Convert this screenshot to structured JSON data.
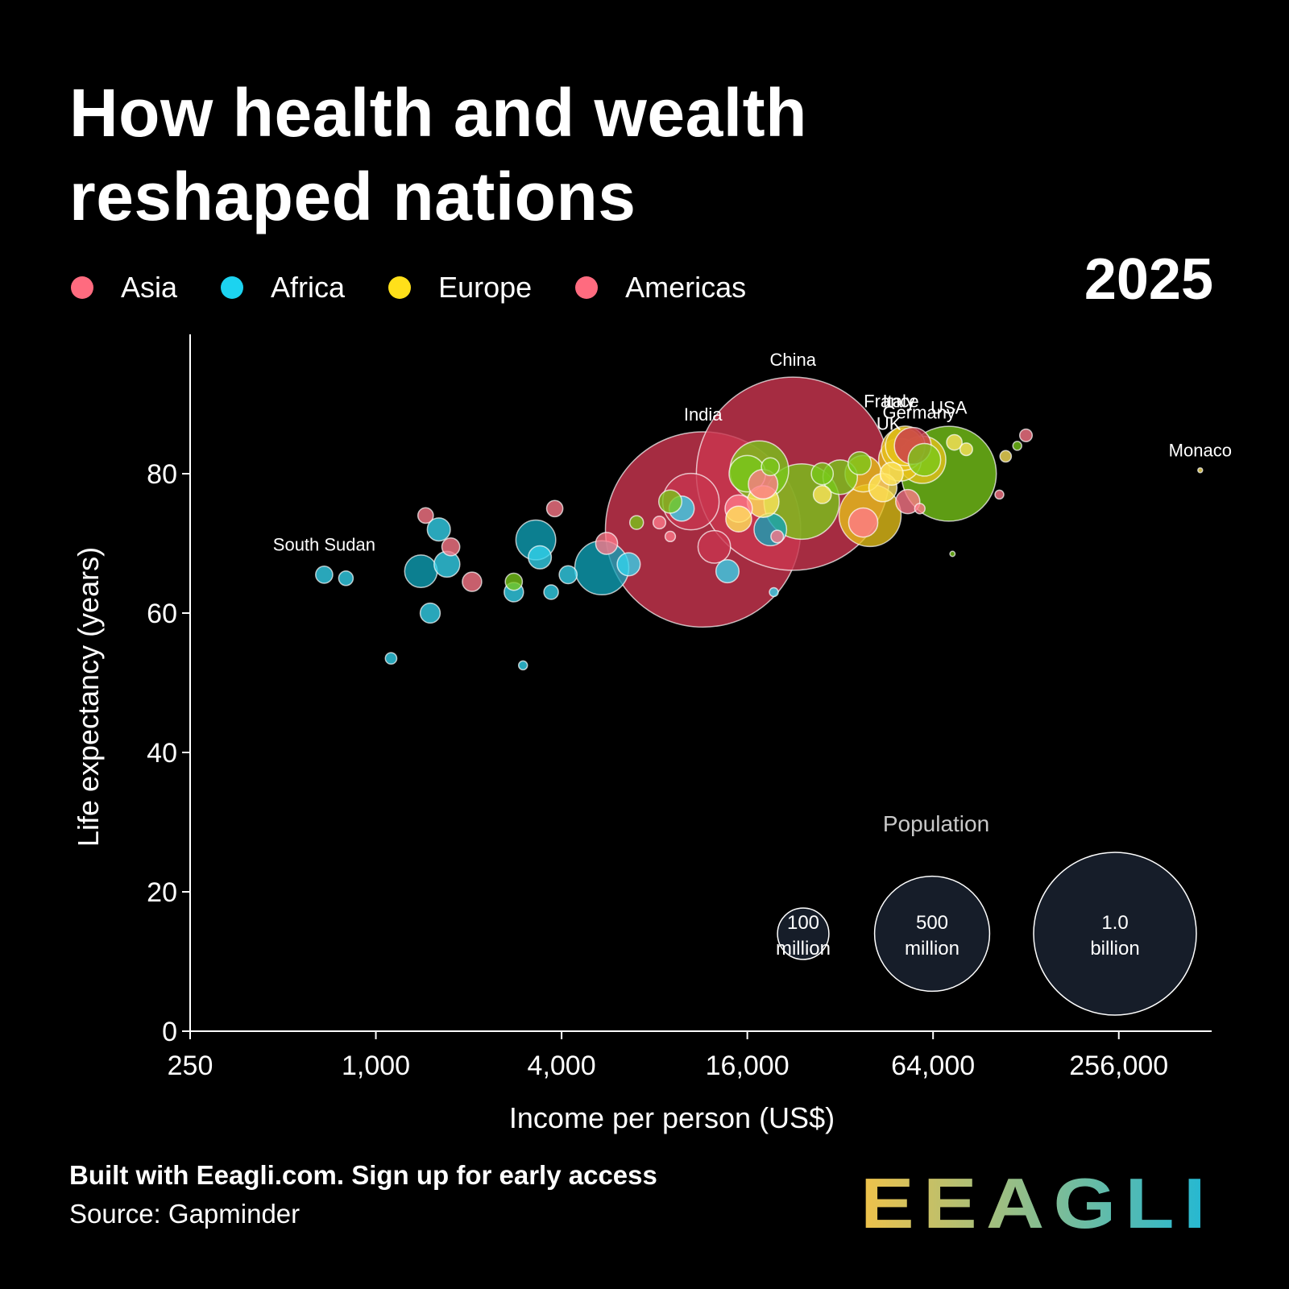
{
  "header": {
    "title": "How health and wealth reshaped nations",
    "year": "2025"
  },
  "legend": [
    {
      "label": "Asia",
      "color": "#ff6b7f"
    },
    {
      "label": "Africa",
      "color": "#1cd3f0"
    },
    {
      "label": "Europe",
      "color": "#ffe01a"
    },
    {
      "label": "Americas",
      "color": "#ff6b7f"
    }
  ],
  "colors": {
    "asia": "#c9364f",
    "asia_light": "#ff7a8a",
    "africa": "#0fa3b8",
    "africa_light": "#34d5ee",
    "europe": "#e7c21a",
    "europe_light": "#ffe65c",
    "americas": "#79c81a",
    "americas_dark": "#4f9a10",
    "bubble_stroke": "#ffffff",
    "logo_start": "#f0c24a",
    "logo_end": "#1fb8d6"
  },
  "footer": {
    "built_with": "Built with Eeagli.com. Sign up for early access",
    "source": "Source: Gapminder"
  },
  "logo_text": "EEAGLI",
  "chart_data": {
    "type": "scatter",
    "title": "How health and wealth reshaped nations",
    "xlabel": "Income per person (US$)",
    "ylabel": "Life expectancy (years)",
    "x_scale": "log2",
    "xlim": [
      250,
      512000
    ],
    "ylim": [
      0,
      100
    ],
    "x_ticks": [
      250,
      1000,
      4000,
      16000,
      64000,
      256000
    ],
    "x_tick_labels": [
      "250",
      "1,000",
      "4,000",
      "16,000",
      "64,000",
      "256,000"
    ],
    "y_ticks": [
      0,
      20,
      40,
      60,
      80
    ],
    "grid": false,
    "legend_position": "top-left",
    "size_legend": {
      "title": "Population",
      "items": [
        {
          "value": 100000000,
          "line1": "100",
          "line2": "million"
        },
        {
          "value": 500000000,
          "line1": "500",
          "line2": "million"
        },
        {
          "value": 1000000000,
          "line1": "1.0",
          "line2": "billion"
        }
      ]
    },
    "labeled_points": [
      {
        "name": "China",
        "region": "asia",
        "income": 22500,
        "life": 80,
        "population": 1410000000
      },
      {
        "name": "India",
        "region": "asia",
        "income": 11500,
        "life": 72,
        "population": 1440000000
      },
      {
        "name": "USA",
        "region": "americas",
        "income": 72000,
        "life": 80,
        "population": 340000000
      },
      {
        "name": "Italy",
        "region": "europe",
        "income": 52000,
        "life": 84,
        "population": 59000000
      },
      {
        "name": "France",
        "region": "europe",
        "income": 51000,
        "life": 83.5,
        "population": 68000000
      },
      {
        "name": "Germany",
        "region": "europe",
        "income": 59000,
        "life": 82,
        "population": 84000000
      },
      {
        "name": "UK",
        "region": "europe",
        "income": 50000,
        "life": 82,
        "population": 69000000
      },
      {
        "name": "Monaco",
        "region": "europe",
        "income": 470000,
        "life": 80.5,
        "population": 39000
      },
      {
        "name": "South Sudan",
        "region": "africa",
        "income": 680,
        "life": 65.5,
        "population": 11000000
      }
    ],
    "points": [
      {
        "region": "asia",
        "income": 1450,
        "life": 74,
        "population": 9000000
      },
      {
        "region": "asia",
        "income": 1750,
        "life": 69.5,
        "population": 12000000
      },
      {
        "region": "asia",
        "income": 2050,
        "life": 64.5,
        "population": 14000000
      },
      {
        "region": "asia",
        "income": 3800,
        "life": 75,
        "population": 10000000
      },
      {
        "region": "asia",
        "income": 5600,
        "life": 70,
        "population": 18000000
      },
      {
        "region": "asia",
        "income": 10500,
        "life": 76,
        "population": 120000000
      },
      {
        "region": "asia",
        "income": 12500,
        "life": 69.5,
        "population": 40000000
      },
      {
        "region": "asia",
        "income": 15000,
        "life": 75,
        "population": 28000000
      },
      {
        "region": "asia",
        "income": 18000,
        "life": 78.5,
        "population": 33000000
      },
      {
        "region": "asia",
        "income": 20000,
        "life": 71,
        "population": 6000000
      },
      {
        "region": "asia",
        "income": 38000,
        "life": 73,
        "population": 32000000
      },
      {
        "region": "asia",
        "income": 55000,
        "life": 84,
        "population": 51000000
      },
      {
        "region": "asia",
        "income": 53000,
        "life": 76,
        "population": 22000000
      },
      {
        "region": "asia",
        "income": 58000,
        "life": 75,
        "population": 4000000
      },
      {
        "region": "asia",
        "income": 128000,
        "life": 85.5,
        "population": 6000000
      },
      {
        "region": "asia",
        "income": 105000,
        "life": 77,
        "population": 3000000
      },
      {
        "region": "asia",
        "income": 8300,
        "life": 73,
        "population": 6000000
      },
      {
        "region": "asia",
        "income": 9000,
        "life": 71,
        "population": 4000000
      },
      {
        "region": "africa",
        "income": 800,
        "life": 65,
        "population": 8000000
      },
      {
        "region": "africa",
        "income": 1120,
        "life": 53.5,
        "population": 5000000
      },
      {
        "region": "africa",
        "income": 1400,
        "life": 66,
        "population": 40000000
      },
      {
        "region": "africa",
        "income": 1600,
        "life": 72,
        "population": 20000000
      },
      {
        "region": "africa",
        "income": 1500,
        "life": 60,
        "population": 15000000
      },
      {
        "region": "africa",
        "income": 1700,
        "life": 67,
        "population": 25000000
      },
      {
        "region": "africa",
        "income": 2800,
        "life": 63,
        "population": 14000000
      },
      {
        "region": "africa",
        "income": 3000,
        "life": 52.5,
        "population": 3000000
      },
      {
        "region": "africa",
        "income": 3300,
        "life": 70.5,
        "population": 60000000
      },
      {
        "region": "africa",
        "income": 3400,
        "life": 68,
        "population": 20000000
      },
      {
        "region": "africa",
        "income": 3700,
        "life": 63,
        "population": 8000000
      },
      {
        "region": "africa",
        "income": 4200,
        "life": 65.5,
        "population": 12000000
      },
      {
        "region": "africa",
        "income": 5400,
        "life": 66.5,
        "population": 110000000
      },
      {
        "region": "africa",
        "income": 6600,
        "life": 67,
        "population": 20000000
      },
      {
        "region": "africa",
        "income": 9800,
        "life": 75,
        "population": 24000000
      },
      {
        "region": "africa",
        "income": 13800,
        "life": 66,
        "population": 20000000
      },
      {
        "region": "africa",
        "income": 19000,
        "life": 72,
        "population": 40000000
      },
      {
        "region": "africa",
        "income": 19500,
        "life": 63,
        "population": 3000000
      },
      {
        "region": "europe",
        "income": 15000,
        "life": 73.5,
        "population": 25000000
      },
      {
        "region": "europe",
        "income": 18000,
        "life": 76,
        "population": 38000000
      },
      {
        "region": "europe",
        "income": 28000,
        "life": 77,
        "population": 12000000
      },
      {
        "region": "europe",
        "income": 38000,
        "life": 80,
        "population": 50000000
      },
      {
        "region": "europe",
        "income": 40000,
        "life": 74,
        "population": 145000000
      },
      {
        "region": "europe",
        "income": 44000,
        "life": 78,
        "population": 30000000
      },
      {
        "region": "europe",
        "income": 47000,
        "life": 80,
        "population": 20000000
      },
      {
        "region": "europe",
        "income": 75000,
        "life": 84.5,
        "population": 9000000
      },
      {
        "region": "europe",
        "income": 82000,
        "life": 83.5,
        "population": 6000000
      },
      {
        "region": "europe",
        "income": 110000,
        "life": 82.5,
        "population": 5000000
      },
      {
        "region": "americas",
        "income": 2800,
        "life": 64.5,
        "population": 11000000
      },
      {
        "region": "americas",
        "income": 7000,
        "life": 73,
        "population": 7000000
      },
      {
        "region": "americas",
        "income": 9000,
        "life": 76,
        "population": 20000000
      },
      {
        "region": "americas",
        "income": 16000,
        "life": 80,
        "population": 50000000
      },
      {
        "region": "americas",
        "income": 17500,
        "life": 80.5,
        "population": 130000000
      },
      {
        "region": "americas",
        "income": 19000,
        "life": 81,
        "population": 12000000
      },
      {
        "region": "americas",
        "income": 24000,
        "life": 76,
        "population": 215000000
      },
      {
        "region": "americas",
        "income": 28000,
        "life": 80,
        "population": 18000000
      },
      {
        "region": "americas",
        "income": 32000,
        "life": 79.5,
        "population": 45000000
      },
      {
        "region": "americas",
        "income": 37000,
        "life": 81.5,
        "population": 20000000
      },
      {
        "region": "americas",
        "income": 74000,
        "life": 68.5,
        "population": 1000000
      },
      {
        "region": "americas",
        "income": 60000,
        "life": 82,
        "population": 40000000
      },
      {
        "region": "americas",
        "income": 120000,
        "life": 84,
        "population": 3000000
      }
    ]
  }
}
